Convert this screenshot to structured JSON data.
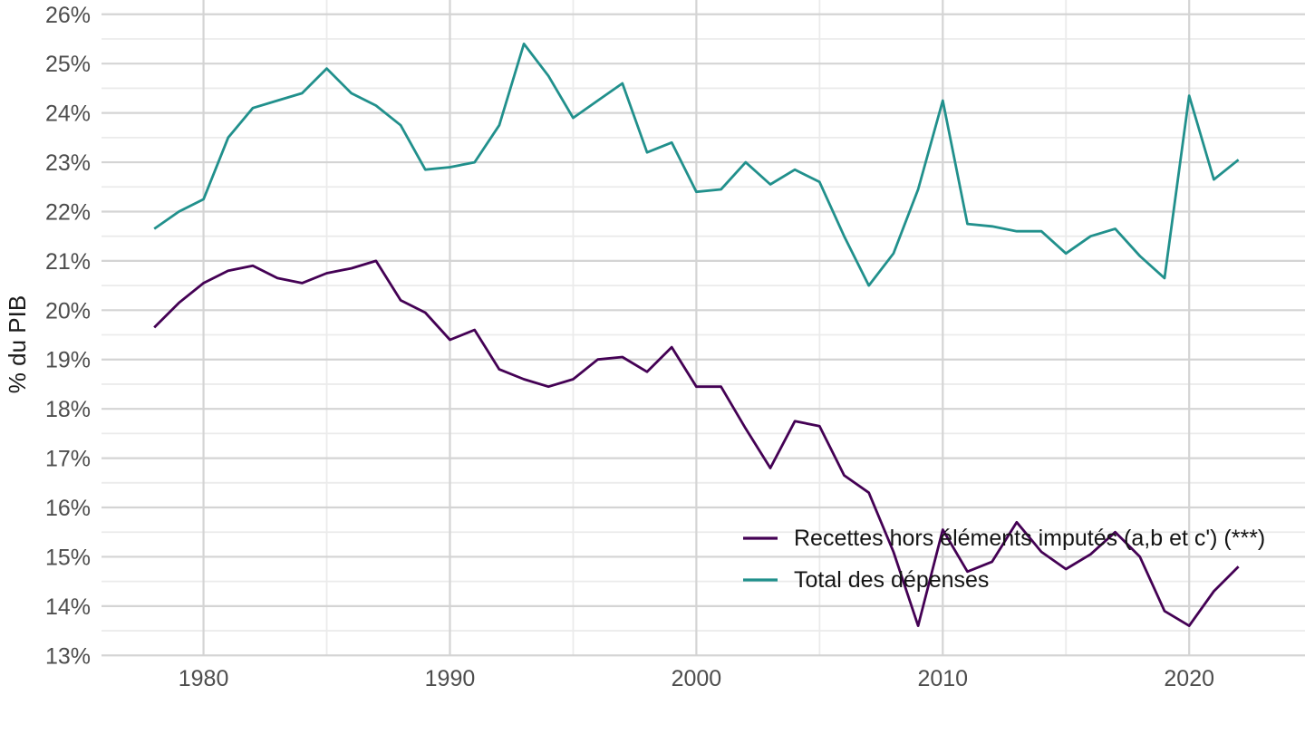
{
  "page": {
    "background": "#ffffff"
  },
  "chart_data": {
    "type": "line",
    "title": "",
    "xlabel": "",
    "ylabel": "% du PIB",
    "x": [
      1978,
      1979,
      1980,
      1981,
      1982,
      1983,
      1984,
      1985,
      1986,
      1987,
      1988,
      1989,
      1990,
      1991,
      1992,
      1993,
      1994,
      1995,
      1996,
      1997,
      1998,
      1999,
      2000,
      2001,
      2002,
      2003,
      2004,
      2005,
      2006,
      2007,
      2008,
      2009,
      2010,
      2011,
      2012,
      2013,
      2014,
      2015,
      2016,
      2017,
      2018,
      2019,
      2020,
      2021,
      2022
    ],
    "series": [
      {
        "name": "Recettes hors éléments imputés (a,b et c') (***)",
        "color": "#440154",
        "values": [
          19.65,
          20.15,
          20.55,
          20.8,
          20.9,
          20.65,
          20.55,
          20.75,
          20.85,
          21.0,
          20.2,
          19.95,
          19.4,
          19.6,
          18.8,
          18.6,
          18.45,
          18.6,
          19.0,
          19.05,
          18.75,
          19.25,
          18.45,
          18.45,
          17.6,
          16.8,
          17.75,
          17.65,
          16.65,
          16.3,
          15.1,
          13.6,
          15.55,
          14.7,
          14.9,
          15.7,
          15.1,
          14.75,
          15.05,
          15.5,
          15.0,
          13.9,
          13.6,
          14.3,
          14.8
        ]
      },
      {
        "name": "Total des dépenses",
        "color": "#21908C",
        "values": [
          21.65,
          22.0,
          22.25,
          23.5,
          24.1,
          24.25,
          24.4,
          24.9,
          24.4,
          24.15,
          23.75,
          22.85,
          22.9,
          23.0,
          23.75,
          25.4,
          24.75,
          23.9,
          24.25,
          24.6,
          23.2,
          23.4,
          22.4,
          22.45,
          23.0,
          22.55,
          22.85,
          22.6,
          21.5,
          20.5,
          21.15,
          22.45,
          24.25,
          21.75,
          21.7,
          21.6,
          21.6,
          21.15,
          21.5,
          21.65,
          21.1,
          20.65,
          24.35,
          22.65,
          23.05
        ]
      }
    ],
    "xlim": [
      1975.86,
      2024.7
    ],
    "ylim": [
      12.95,
      26.29
    ],
    "x_ticks": {
      "values": [
        1980,
        1990,
        2000,
        2010,
        2020
      ],
      "labels": [
        "1980",
        "1990",
        "2000",
        "2010",
        "2020"
      ]
    },
    "y_ticks": {
      "values": [
        13,
        14,
        15,
        16,
        17,
        18,
        19,
        20,
        21,
        22,
        23,
        24,
        25,
        26
      ],
      "labels": [
        "13%",
        "14%",
        "15%",
        "16%",
        "17%",
        "18%",
        "19%",
        "20%",
        "21%",
        "22%",
        "23%",
        "24%",
        "25%",
        "26%"
      ]
    },
    "x_minor": [
      1985,
      1995,
      2005,
      2015
    ],
    "y_minor": [
      13.5,
      14.5,
      15.5,
      16.5,
      17.5,
      18.5,
      19.5,
      20.5,
      21.5,
      22.5,
      23.5,
      24.5,
      25.5
    ],
    "grid": "major+minor",
    "legend_position": "inside-bottom-right",
    "colors": {
      "grid_major": "#d4d4d4",
      "grid_minor": "#ebebeb",
      "tick_label": "#4d4d4d",
      "axis_title": "#1a1a1a",
      "legend_text": "#141414"
    }
  }
}
